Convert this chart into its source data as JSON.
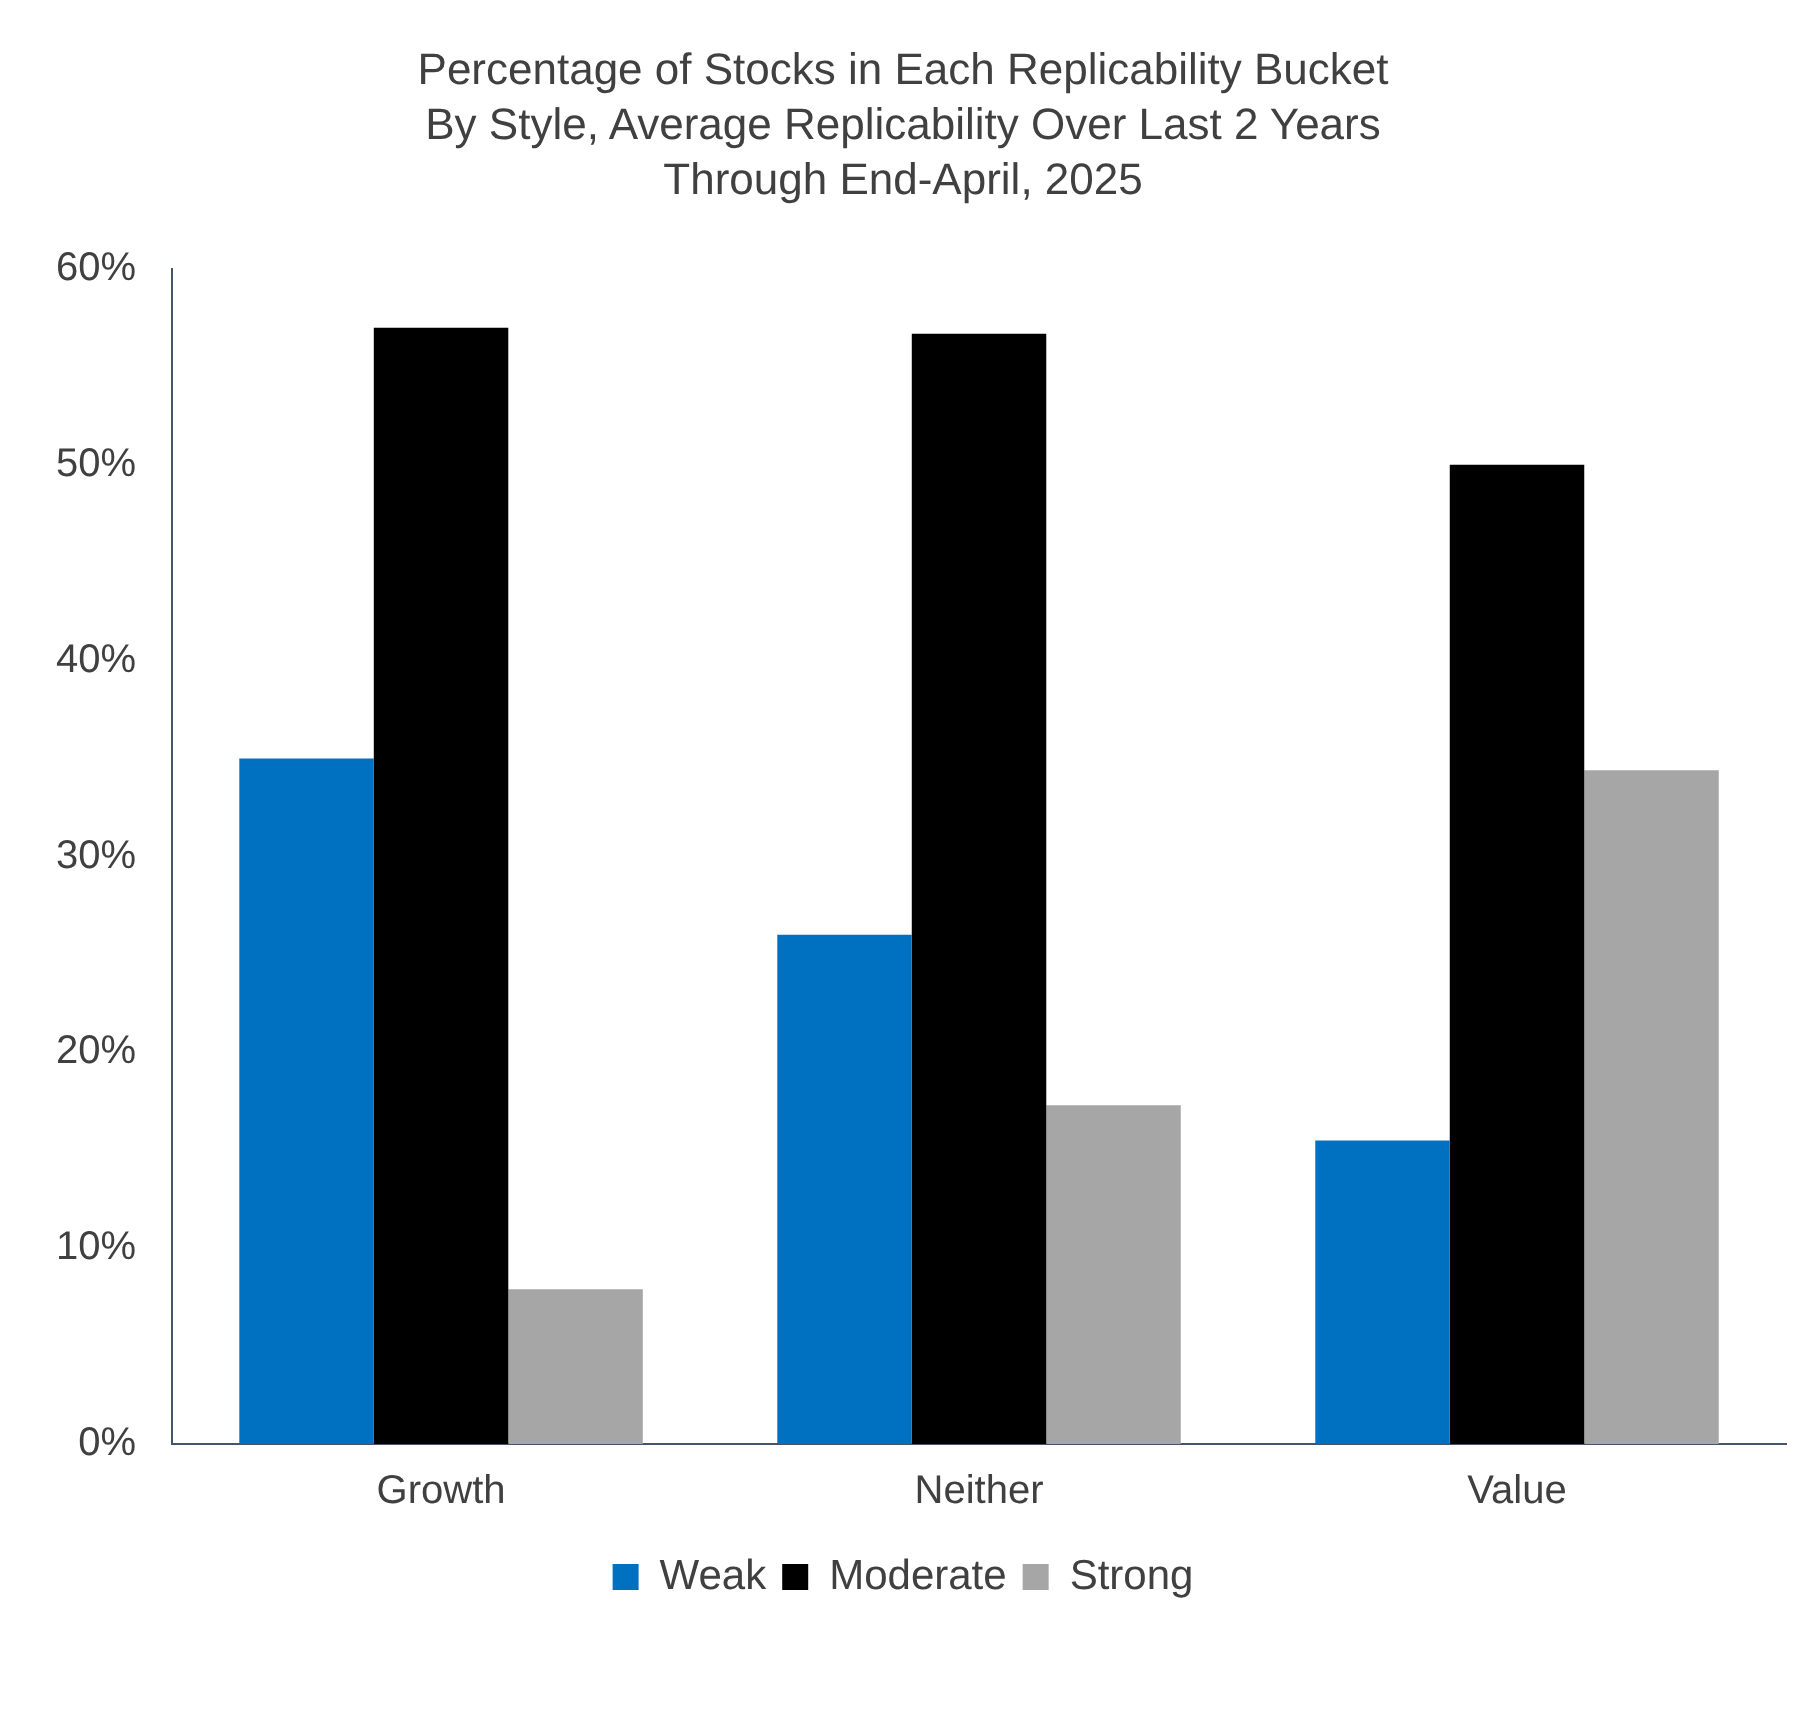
{
  "chart_data": {
    "type": "bar",
    "title": "Percentage of Stocks in Each Replicability Bucket\nBy Style, Average Replicability Over Last 2 Years\nThrough End-April, 2025",
    "categories": [
      "Growth",
      "Neither",
      "Value"
    ],
    "series": [
      {
        "name": "Weak",
        "color": "#0070c0",
        "values": [
          35,
          26,
          15.5
        ]
      },
      {
        "name": "Moderate",
        "color": "#000000",
        "values": [
          57,
          56.7,
          50
        ]
      },
      {
        "name": "Strong",
        "color": "#a6a6a6",
        "values": [
          7.9,
          17.3,
          34.4
        ]
      }
    ],
    "ylim": [
      0,
      60
    ],
    "yticks": [
      {
        "value": 0,
        "label": "0%"
      },
      {
        "value": 10,
        "label": "10%"
      },
      {
        "value": 20,
        "label": "20%"
      },
      {
        "value": 30,
        "label": "30%"
      },
      {
        "value": 40,
        "label": "40%"
      },
      {
        "value": 50,
        "label": "50%"
      },
      {
        "value": 60,
        "label": "60%"
      }
    ],
    "grid": false,
    "legend": "bottom"
  }
}
